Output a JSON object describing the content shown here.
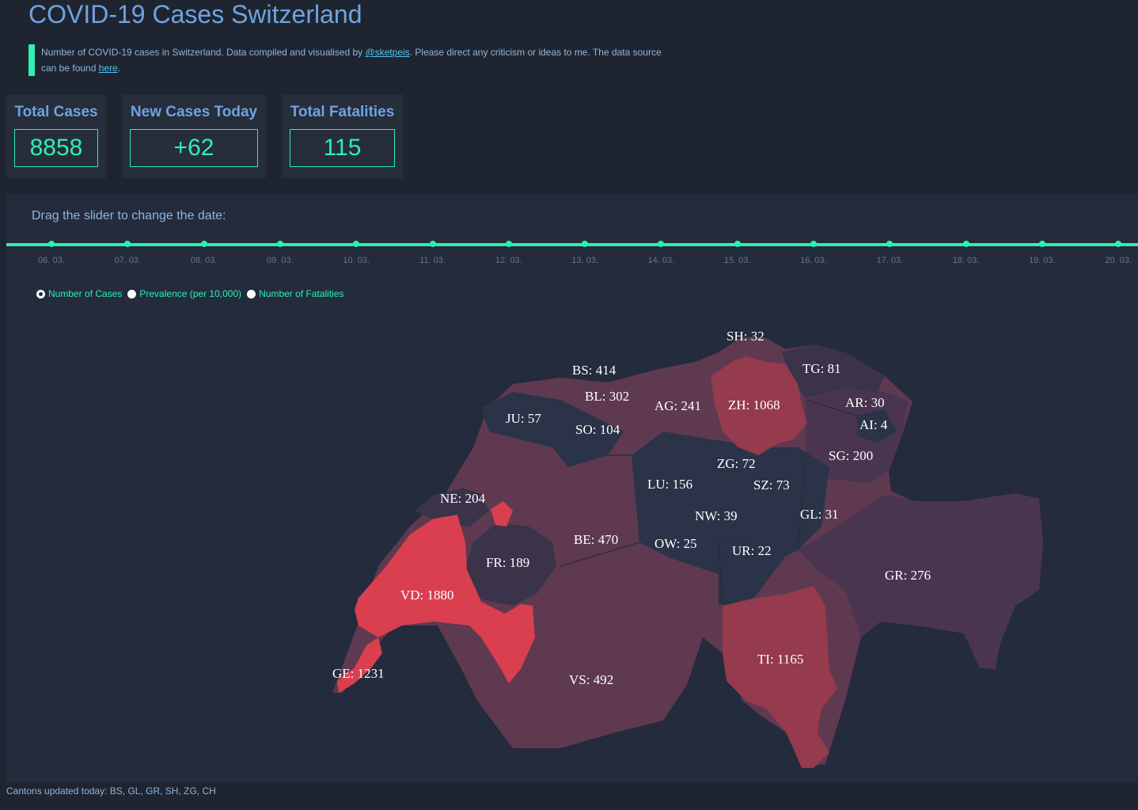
{
  "title": "COVID-19 Cases Switzerland",
  "intro": {
    "text_before": "Number of COVID-19 cases in Switzerland. Data compiled and visualised by ",
    "author_link": "@sketpeis",
    "text_middle": ". Please direct any criticism or ideas to me. The data source can be found ",
    "source_link": "here",
    "text_after": "."
  },
  "stats": {
    "total_cases_label": "Total Cases",
    "total_cases_value": "8858",
    "new_cases_label": "New Cases Today",
    "new_cases_value": "+62",
    "fatalities_label": "Total Fatalities",
    "fatalities_value": "115"
  },
  "slider": {
    "label": "Drag the slider to change the date:",
    "dates": [
      "06. 03.",
      "07. 03.",
      "08. 03.",
      "09. 03.",
      "10. 03.",
      "11. 03.",
      "12. 03.",
      "13. 03.",
      "14. 03.",
      "15. 03.",
      "16. 03.",
      "17. 03.",
      "18. 03.",
      "19. 03.",
      "20. 03."
    ]
  },
  "radios": {
    "cases": "Number of Cases",
    "prevalence": "Prevalence (per 10,000)",
    "fatalities": "Number of Fatalities",
    "selected": "cases"
  },
  "colors": {
    "accent": "#2ef0b0",
    "high": "#d93f4f",
    "medium_high": "#963a4d",
    "medium": "#5e3950",
    "low": "#3a334a",
    "lowest": "#2a3347"
  },
  "cantons": [
    {
      "code": "SH",
      "label": "SH: 32"
    },
    {
      "code": "TG",
      "label": "TG: 81"
    },
    {
      "code": "BS",
      "label": "BS: 414"
    },
    {
      "code": "BL",
      "label": "BL: 302"
    },
    {
      "code": "AG",
      "label": "AG: 241"
    },
    {
      "code": "ZH",
      "label": "ZH: 1068"
    },
    {
      "code": "AR",
      "label": "AR: 30"
    },
    {
      "code": "AI",
      "label": "AI: 4"
    },
    {
      "code": "JU",
      "label": "JU: 57"
    },
    {
      "code": "SO",
      "label": "SO: 104"
    },
    {
      "code": "SG",
      "label": "SG: 200"
    },
    {
      "code": "ZG",
      "label": "ZG: 72"
    },
    {
      "code": "LU",
      "label": "LU: 156"
    },
    {
      "code": "SZ",
      "label": "SZ: 73"
    },
    {
      "code": "NE",
      "label": "NE: 204"
    },
    {
      "code": "NW",
      "label": "NW: 39"
    },
    {
      "code": "GL",
      "label": "GL: 31"
    },
    {
      "code": "BE",
      "label": "BE: 470"
    },
    {
      "code": "OW",
      "label": "OW: 25"
    },
    {
      "code": "UR",
      "label": "UR: 22"
    },
    {
      "code": "FR",
      "label": "FR: 189"
    },
    {
      "code": "GR",
      "label": "GR: 276"
    },
    {
      "code": "VD",
      "label": "VD: 1880"
    },
    {
      "code": "TI",
      "label": "TI: 1165"
    },
    {
      "code": "GE",
      "label": "GE: 1231"
    },
    {
      "code": "VS",
      "label": "VS: 492"
    }
  ],
  "footer": "Cantons updated today: BS, GL, GR, SH, ZG, CH"
}
